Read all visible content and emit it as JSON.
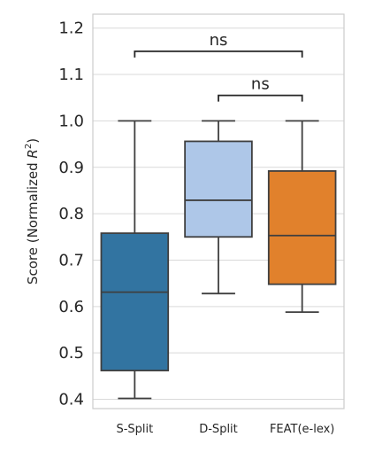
{
  "chart_data": {
    "type": "box",
    "ylabel": "Score (Normalized R²)",
    "ylim": [
      0.38,
      1.23
    ],
    "yticks": [
      "0.4",
      "0.5",
      "0.6",
      "0.7",
      "0.8",
      "0.9",
      "1.0",
      "1.1",
      "1.2"
    ],
    "grid": true,
    "categories": [
      "S-Split",
      "D-Split",
      "FEAT(e-lex)"
    ],
    "colors": [
      "#3274a1",
      "#aec7e8",
      "#e1812c"
    ],
    "boxes": [
      {
        "whisker_low": 0.402,
        "q1": 0.462,
        "median": 0.631,
        "q3": 0.758,
        "whisker_high": 1.0
      },
      {
        "whisker_low": 0.628,
        "q1": 0.75,
        "median": 0.829,
        "q3": 0.956,
        "whisker_high": 1.0
      },
      {
        "whisker_low": 0.588,
        "q1": 0.648,
        "median": 0.753,
        "q3": 0.892,
        "whisker_high": 1.0
      }
    ],
    "annotations": [
      {
        "from": 0,
        "to": 2,
        "y": 1.15,
        "text": "ns"
      },
      {
        "from": 1,
        "to": 2,
        "y": 1.055,
        "text": "ns"
      }
    ]
  }
}
